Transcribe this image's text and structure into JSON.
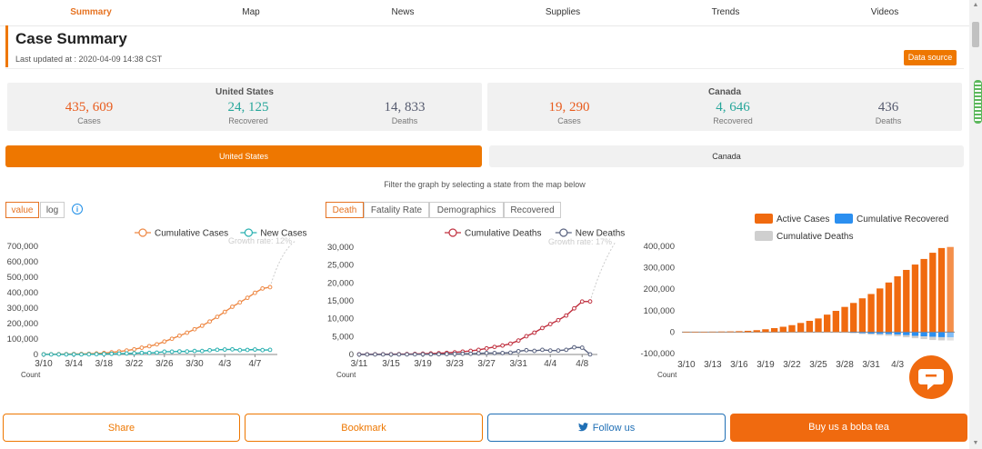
{
  "nav": {
    "items": [
      "Summary",
      "Map",
      "News",
      "Supplies",
      "Trends",
      "Videos"
    ],
    "active": 0
  },
  "header": {
    "title": "Case Summary",
    "updated": "Last updated at : 2020-04-09 14:38 CST",
    "data_source": "Data source"
  },
  "summary": {
    "us": {
      "name": "United States",
      "cases": "435, 609",
      "recovered": "24, 125",
      "deaths": "14, 833"
    },
    "ca": {
      "name": "Canada",
      "cases": "19, 290",
      "recovered": "4, 646",
      "deaths": "436"
    },
    "labels": {
      "cases": "Cases",
      "recovered": "Recovered",
      "deaths": "Deaths"
    }
  },
  "country_tabs": [
    "United States",
    "Canada"
  ],
  "filter_text": "Filter the graph by selecting a state from the map below",
  "scale_toggle": [
    "value",
    "log"
  ],
  "metric_tabs": [
    "Death",
    "Fatality Rate",
    "Demographics",
    "Recovered"
  ],
  "buttons": {
    "share": "Share",
    "bookmark": "Bookmark",
    "follow": "Follow us",
    "boba": "Buy us a boba tea"
  },
  "colors": {
    "accent": "#ee7700",
    "green": "#26a69a",
    "slate": "#555a6e",
    "blue": "#1f8fe8",
    "deaths_red": "#c0392b"
  },
  "chart_data": [
    {
      "type": "line",
      "legend": [
        "Cumulative Cases",
        "New Cases"
      ],
      "annotation": "Growth rate: 12%",
      "ylabel": "Count",
      "xticks": [
        "3/10",
        "3/14",
        "3/18",
        "3/22",
        "3/26",
        "3/30",
        "4/3",
        "4/7"
      ],
      "yticks": [
        "0",
        "100,000",
        "200,000",
        "300,000",
        "400,000",
        "500,000",
        "600,000",
        "700,000"
      ],
      "ylim": [
        0,
        700000
      ],
      "x": [
        "3/10",
        "3/11",
        "3/12",
        "3/13",
        "3/14",
        "3/15",
        "3/16",
        "3/17",
        "3/18",
        "3/19",
        "3/20",
        "3/21",
        "3/22",
        "3/23",
        "3/24",
        "3/25",
        "3/26",
        "3/27",
        "3/28",
        "3/29",
        "3/30",
        "3/31",
        "4/1",
        "4/2",
        "4/3",
        "4/4",
        "4/5",
        "4/6",
        "4/7",
        "4/8",
        "4/9"
      ],
      "series": [
        {
          "name": "Cumulative Cases",
          "values": [
            1000,
            1300,
            1700,
            2200,
            2900,
            3500,
            4600,
            6400,
            9300,
            13700,
            19100,
            25500,
            33300,
            43800,
            53700,
            65500,
            83500,
            101600,
            121400,
            140800,
            163400,
            186000,
            213300,
            243600,
            275600,
            308800,
            337100,
            366700,
            398800,
            427000,
            435609
          ]
        },
        {
          "name": "New Cases",
          "values": [
            300,
            300,
            400,
            500,
            700,
            600,
            1100,
            1800,
            2900,
            4400,
            5400,
            6400,
            7800,
            10500,
            9900,
            11800,
            18000,
            18100,
            19800,
            19400,
            22600,
            22600,
            27300,
            30300,
            32000,
            33200,
            28300,
            29600,
            32100,
            28200,
            30000
          ]
        }
      ]
    },
    {
      "type": "line",
      "legend": [
        "Cumulative Deaths",
        "New Deaths"
      ],
      "annotation": "Growth rate: 17%",
      "ylabel": "Count",
      "xticks": [
        "3/11",
        "3/15",
        "3/19",
        "3/23",
        "3/27",
        "3/31",
        "4/4",
        "4/8"
      ],
      "yticks": [
        "0",
        "5,000",
        "10,000",
        "15,000",
        "20,000",
        "25,000",
        "30,000"
      ],
      "ylim": [
        0,
        30000
      ],
      "x": [
        "3/11",
        "3/12",
        "3/13",
        "3/14",
        "3/15",
        "3/16",
        "3/17",
        "3/18",
        "3/19",
        "3/20",
        "3/21",
        "3/22",
        "3/23",
        "3/24",
        "3/25",
        "3/26",
        "3/27",
        "3/28",
        "3/29",
        "3/30",
        "3/31",
        "4/1",
        "4/2",
        "4/3",
        "4/4",
        "4/5",
        "4/6",
        "4/7",
        "4/8",
        "4/9"
      ],
      "series": [
        {
          "name": "Cumulative Deaths",
          "values": [
            35,
            40,
            50,
            60,
            70,
            90,
            110,
            150,
            210,
            270,
            340,
            450,
            600,
            800,
            1000,
            1300,
            1700,
            2100,
            2500,
            3000,
            3900,
            5100,
            6100,
            7400,
            8500,
            9600,
            10900,
            12900,
            14800,
            14833
          ]
        },
        {
          "name": "New Deaths",
          "values": [
            5,
            5,
            10,
            10,
            10,
            20,
            20,
            40,
            60,
            60,
            70,
            110,
            150,
            200,
            200,
            300,
            400,
            400,
            400,
            500,
            900,
            1200,
            1000,
            1300,
            1100,
            1100,
            1300,
            2000,
            1900,
            33
          ]
        }
      ]
    },
    {
      "type": "bar",
      "stacked": true,
      "legend": [
        "Active Cases",
        "Cumulative Recovered",
        "Cumulative Deaths"
      ],
      "ylabel": "Count",
      "xticks": [
        "3/10",
        "3/13",
        "3/16",
        "3/19",
        "3/22",
        "3/25",
        "3/28",
        "3/31",
        "4/3"
      ],
      "yticks": [
        "-100,000",
        "0",
        "100,000",
        "200,000",
        "300,000",
        "400,000"
      ],
      "ylim": [
        -100000,
        400000
      ],
      "categories": [
        "3/10",
        "3/11",
        "3/12",
        "3/13",
        "3/14",
        "3/15",
        "3/16",
        "3/17",
        "3/18",
        "3/19",
        "3/20",
        "3/21",
        "3/22",
        "3/23",
        "3/24",
        "3/25",
        "3/26",
        "3/27",
        "3/28",
        "3/29",
        "3/30",
        "3/31",
        "4/1",
        "4/2",
        "4/3",
        "4/4",
        "4/5",
        "4/6",
        "4/7",
        "4/8",
        "4/9"
      ],
      "series": [
        {
          "name": "Active Cases",
          "values": [
            900,
            1200,
            1600,
            2100,
            2700,
            3300,
            4400,
            6100,
            9000,
            13300,
            18600,
            25000,
            32500,
            42700,
            52400,
            63700,
            81500,
            99000,
            117500,
            136000,
            157500,
            177700,
            203500,
            231300,
            260200,
            290000,
            315000,
            341000,
            370000,
            392000,
            397000
          ]
        },
        {
          "name": "Cumulative Recovered",
          "values": [
            -8,
            -10,
            -12,
            -20,
            -50,
            -50,
            -50,
            -100,
            -100,
            -150,
            -150,
            -170,
            -180,
            -300,
            -350,
            -400,
            -600,
            -900,
            -1000,
            -2500,
            -5000,
            -7000,
            -8500,
            -9500,
            -11000,
            -14500,
            -17500,
            -19800,
            -22000,
            -23500,
            -24125
          ]
        },
        {
          "name": "Cumulative Deaths",
          "values": [
            -30,
            -40,
            -50,
            -60,
            -70,
            -90,
            -110,
            -150,
            -210,
            -270,
            -340,
            -450,
            -600,
            -800,
            -1000,
            -1300,
            -1700,
            -2100,
            -2500,
            -3000,
            -3900,
            -5100,
            -6100,
            -7400,
            -8500,
            -9600,
            -10900,
            -12900,
            -14800,
            -14833,
            -14833
          ]
        }
      ]
    }
  ]
}
